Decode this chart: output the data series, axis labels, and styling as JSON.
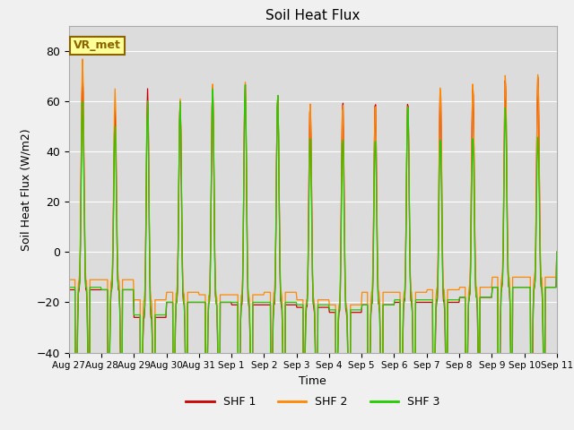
{
  "title": "Soil Heat Flux",
  "xlabel": "Time",
  "ylabel": "Soil Heat Flux (W/m2)",
  "ylim": [
    -40,
    90
  ],
  "yticks": [
    -40,
    -20,
    0,
    20,
    40,
    60,
    80
  ],
  "plot_bg": "#dcdcdc",
  "fig_bg": "#f0f0f0",
  "legend_labels": [
    "SHF 1",
    "SHF 2",
    "SHF 3"
  ],
  "legend_colors": [
    "#cc0000",
    "#ff8800",
    "#22cc00"
  ],
  "annotation_text": "VR_met",
  "annotation_box_color": "#ffff99",
  "annotation_border_color": "#8b6400",
  "n_days": 15,
  "peaks_shf1": [
    72,
    57,
    65,
    60,
    66,
    67,
    63,
    60,
    61,
    61,
    61,
    66,
    67,
    69,
    70
  ],
  "peaks_shf2": [
    77,
    65,
    60,
    61,
    67,
    68,
    63,
    60,
    60,
    60,
    60,
    67,
    68,
    71,
    71
  ],
  "peaks_shf3": [
    60,
    50,
    60,
    60,
    65,
    67,
    63,
    46,
    46,
    46,
    60,
    46,
    46,
    58,
    46
  ],
  "troughs_shf1": [
    -15,
    -15,
    -26,
    -20,
    -20,
    -21,
    -21,
    -22,
    -24,
    -21,
    -20,
    -20,
    -18,
    -14,
    -14
  ],
  "troughs_shf2": [
    -11,
    -11,
    -19,
    -16,
    -17,
    -17,
    -16,
    -19,
    -21,
    -16,
    -16,
    -15,
    -14,
    -10,
    -10
  ],
  "troughs_shf3": [
    -14,
    -15,
    -25,
    -20,
    -20,
    -20,
    -20,
    -21,
    -23,
    -21,
    -19,
    -19,
    -18,
    -14,
    -14
  ],
  "date_labels": [
    "Aug 27",
    "Aug 28",
    "Aug 29",
    "Aug 30",
    "Aug 31",
    "Sep 1",
    "Sep 2",
    "Sep 3",
    "Sep 4",
    "Sep 5",
    "Sep 6",
    "Sep 7",
    "Sep 8",
    "Sep 9",
    "Sep 10",
    "Sep 11"
  ]
}
